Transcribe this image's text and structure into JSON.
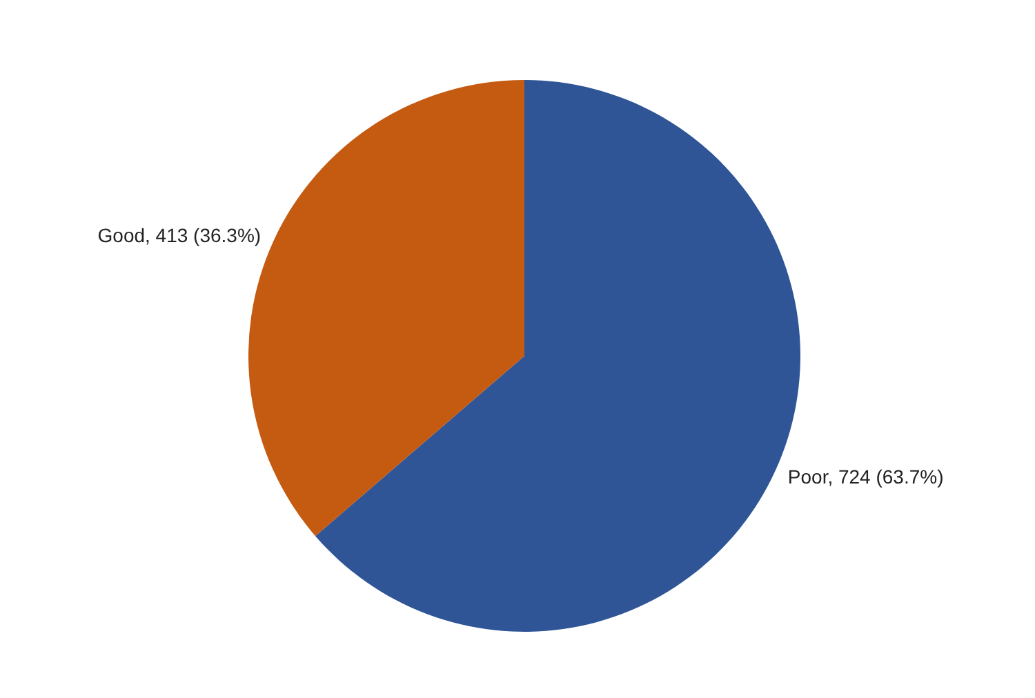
{
  "chart_data": {
    "type": "pie",
    "categories": [
      "Poor",
      "Good"
    ],
    "values": [
      724,
      413
    ],
    "value_labels": [
      "724 (63.7%)",
      "413 (36.3%)"
    ],
    "colors": [
      "#2f5597",
      "#c55a11"
    ],
    "legend": false
  }
}
